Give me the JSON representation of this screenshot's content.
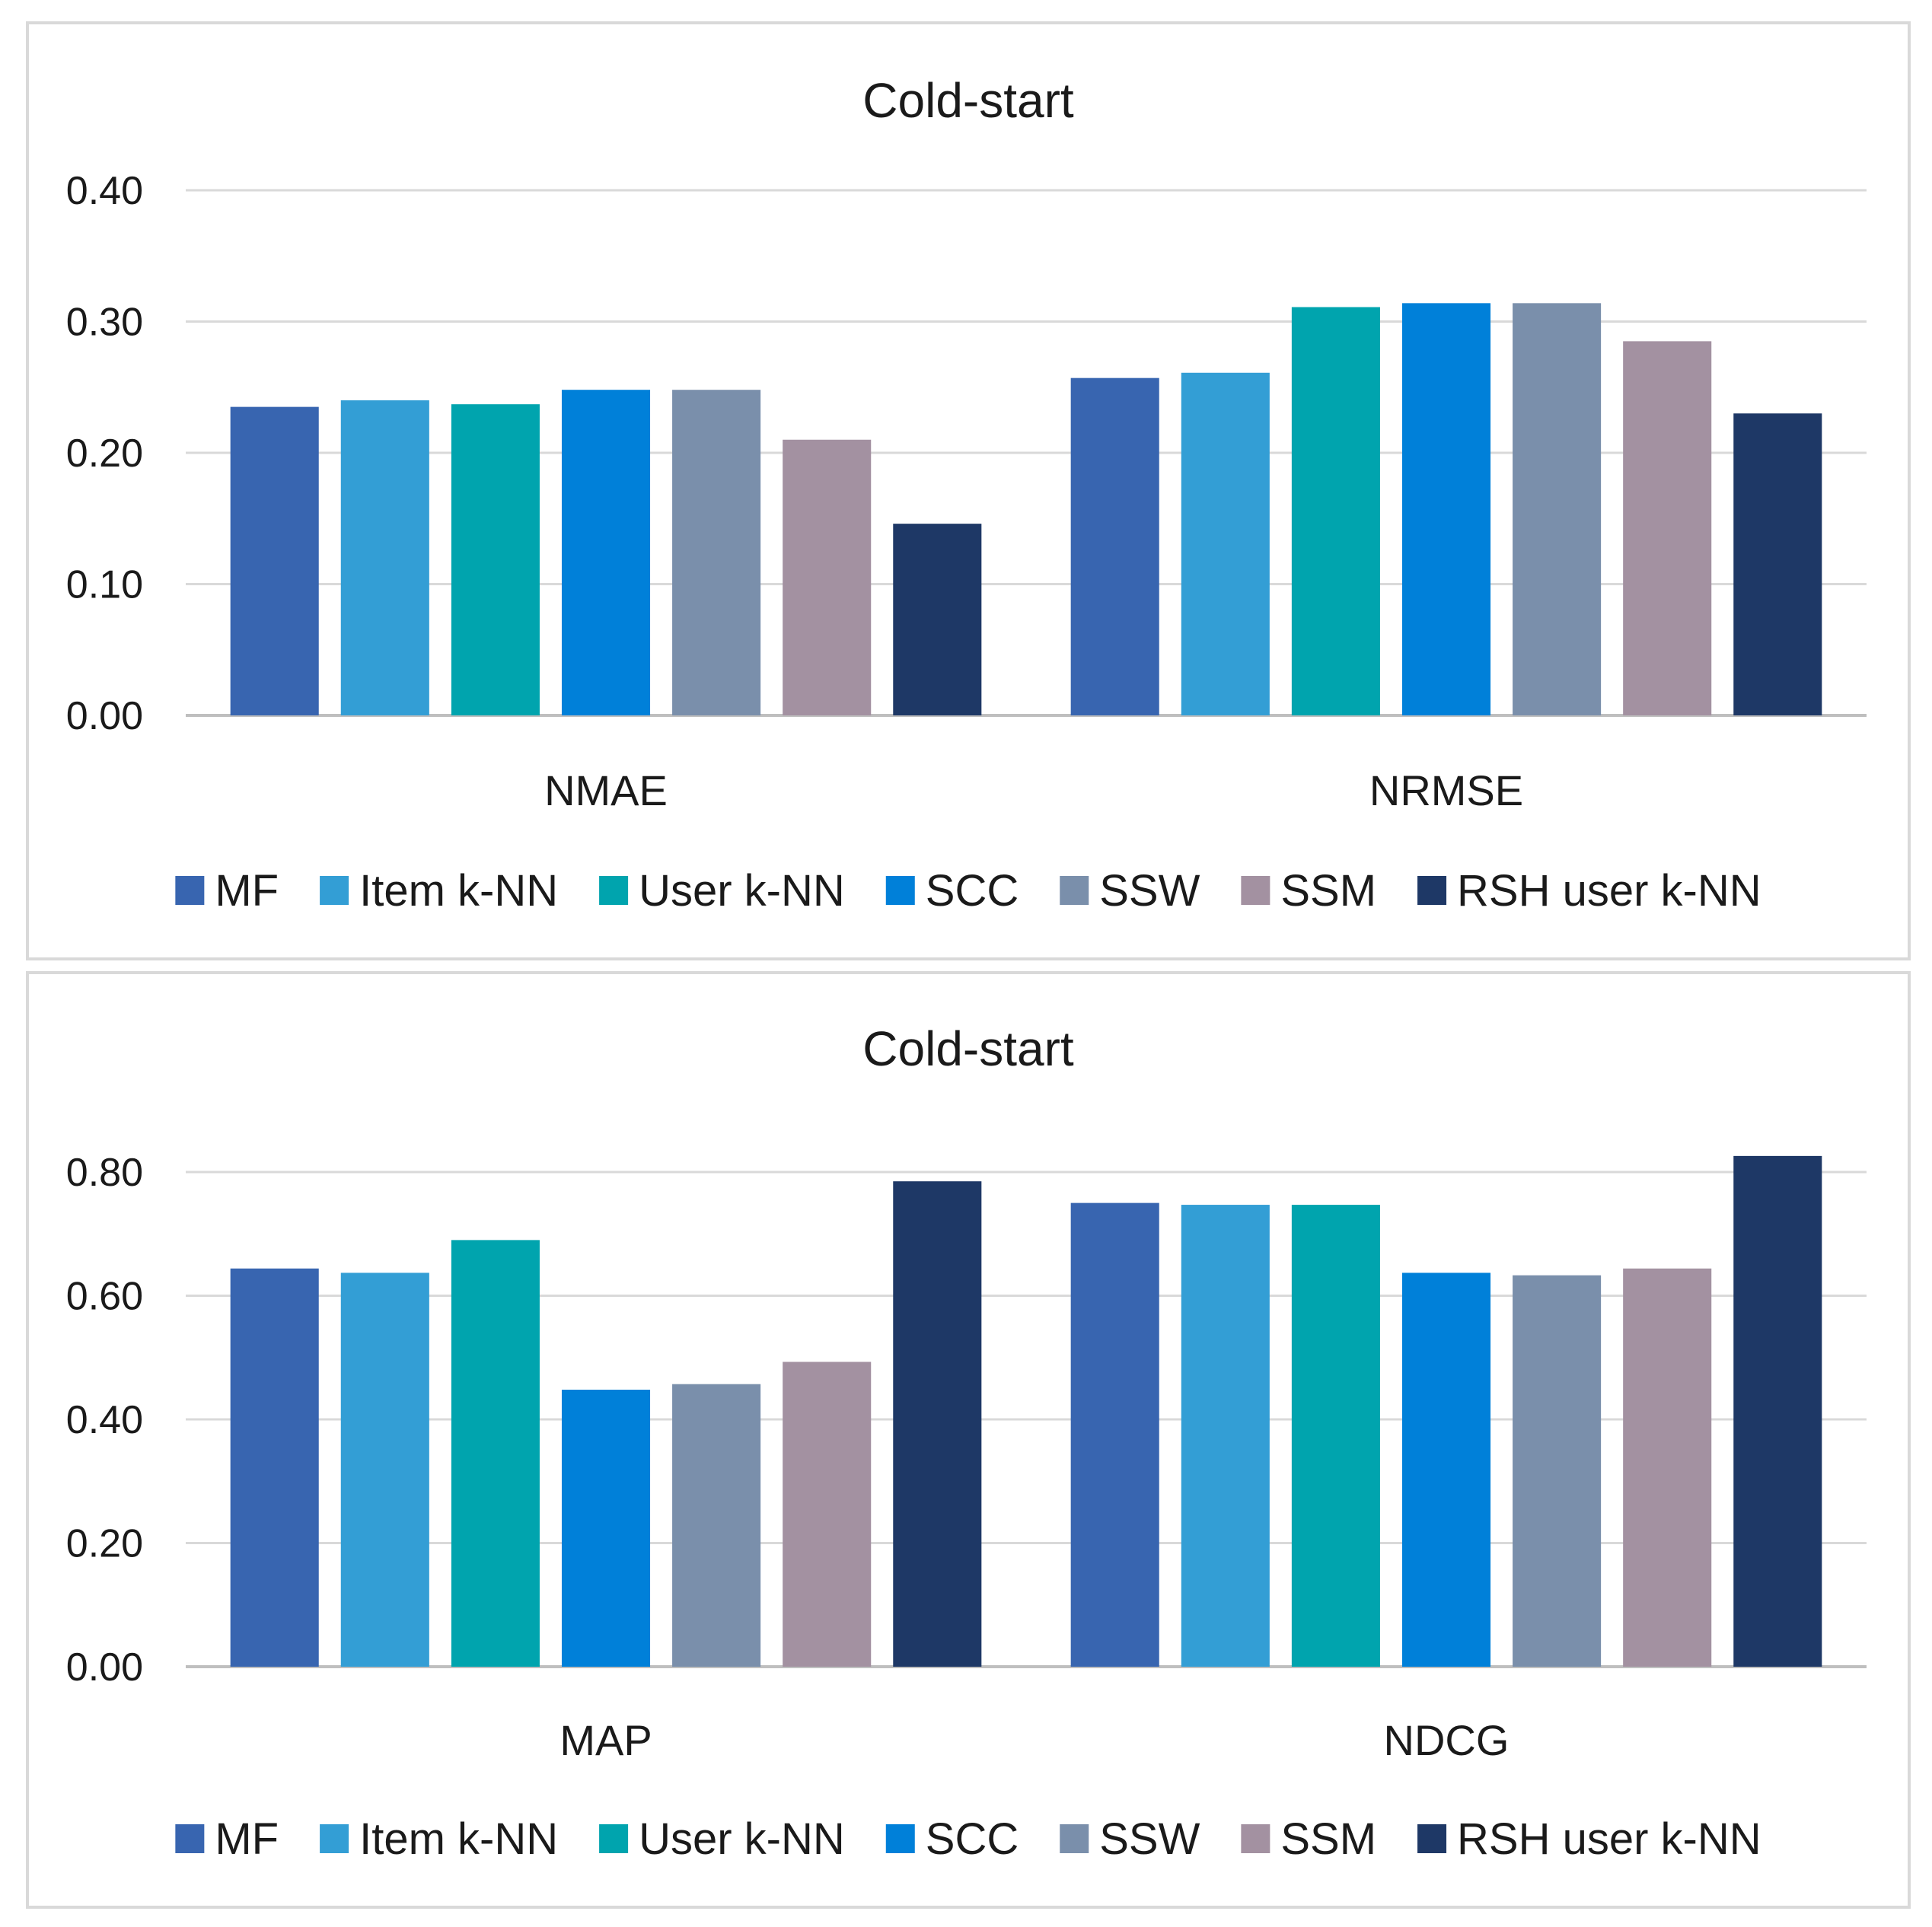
{
  "series_colors": [
    "#3865b0",
    "#339ed5",
    "#00a4ae",
    "#0080d9",
    "#7a8fab",
    "#a391a1",
    "#1e3866"
  ],
  "chart_data": [
    {
      "type": "bar",
      "title": "Cold-start",
      "xlabel": "",
      "ylabel": "",
      "ylim": [
        0,
        0.4
      ],
      "yticks": [
        "0.00",
        "0.10",
        "0.20",
        "0.30",
        "0.40"
      ],
      "ytick_values": [
        0,
        0.1,
        0.2,
        0.3,
        0.4
      ],
      "grid": true,
      "legend_position": "bottom",
      "categories": [
        "NMAE",
        "NRMSE"
      ],
      "series": [
        {
          "name": "MF",
          "values": [
            0.235,
            0.257
          ]
        },
        {
          "name": "Item k-NN",
          "values": [
            0.24,
            0.261
          ]
        },
        {
          "name": "User k-NN",
          "values": [
            0.237,
            0.311
          ]
        },
        {
          "name": "SCC",
          "values": [
            0.248,
            0.314
          ]
        },
        {
          "name": "SSW",
          "values": [
            0.248,
            0.314
          ]
        },
        {
          "name": "SSM",
          "values": [
            0.21,
            0.285
          ]
        },
        {
          "name": "RSH user k-NN",
          "values": [
            0.146,
            0.23
          ]
        }
      ]
    },
    {
      "type": "bar",
      "title": "Cold-start",
      "xlabel": "",
      "ylabel": "",
      "ylim": [
        0,
        0.8
      ],
      "yticks": [
        "0.00",
        "0.20",
        "0.40",
        "0.60",
        "0.80"
      ],
      "ytick_values": [
        0,
        0.2,
        0.4,
        0.6,
        0.8
      ],
      "grid": true,
      "legend_position": "bottom",
      "categories": [
        "MAP",
        "NDCG"
      ],
      "series": [
        {
          "name": "MF",
          "values": [
            0.644,
            0.75
          ]
        },
        {
          "name": "Item k-NN",
          "values": [
            0.637,
            0.747
          ]
        },
        {
          "name": "User k-NN",
          "values": [
            0.69,
            0.747
          ]
        },
        {
          "name": "SCC",
          "values": [
            0.448,
            0.637
          ]
        },
        {
          "name": "SSW",
          "values": [
            0.457,
            0.633
          ]
        },
        {
          "name": "SSM",
          "values": [
            0.493,
            0.644
          ]
        },
        {
          "name": "RSH user k-NN",
          "values": [
            0.785,
            0.826
          ]
        }
      ]
    }
  ]
}
